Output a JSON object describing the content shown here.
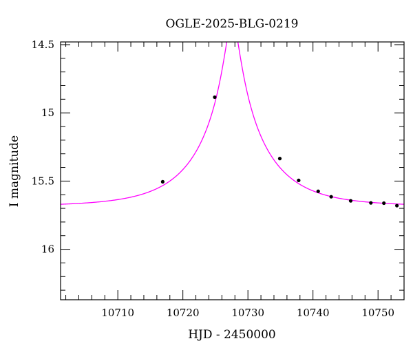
{
  "chart_data": {
    "type": "scatter",
    "title": "OGLE-2025-BLG-0219",
    "xlabel": "HJD - 2450000",
    "ylabel": "I magnitude",
    "xlim": [
      10701.2,
      10754.0
    ],
    "ylim": [
      16.37,
      14.48
    ],
    "y_inverted": true,
    "grid": false,
    "x_ticks": [
      10710,
      10720,
      10730,
      10740,
      10750
    ],
    "x_tick_labels": [
      "10710",
      "10720",
      "10730",
      "10740",
      "10750"
    ],
    "y_ticks": [
      14.5,
      15,
      15.5,
      16
    ],
    "y_tick_labels": [
      "14.5",
      "15",
      "15.5",
      "16"
    ],
    "model_color": "#ff00ff",
    "point_color": "#000000",
    "model": {
      "t0": 10727.6,
      "u0": 0.1,
      "tE": 10.0,
      "baseline": 15.685,
      "peak": 14.32
    },
    "points": {
      "x": [
        10716.9,
        10724.9,
        10734.9,
        10737.8,
        10740.8,
        10742.8,
        10745.8,
        10748.9,
        10750.9,
        10752.9
      ],
      "y": [
        15.505,
        14.885,
        15.335,
        15.495,
        15.575,
        15.615,
        15.645,
        15.66,
        15.662,
        15.68
      ]
    }
  }
}
